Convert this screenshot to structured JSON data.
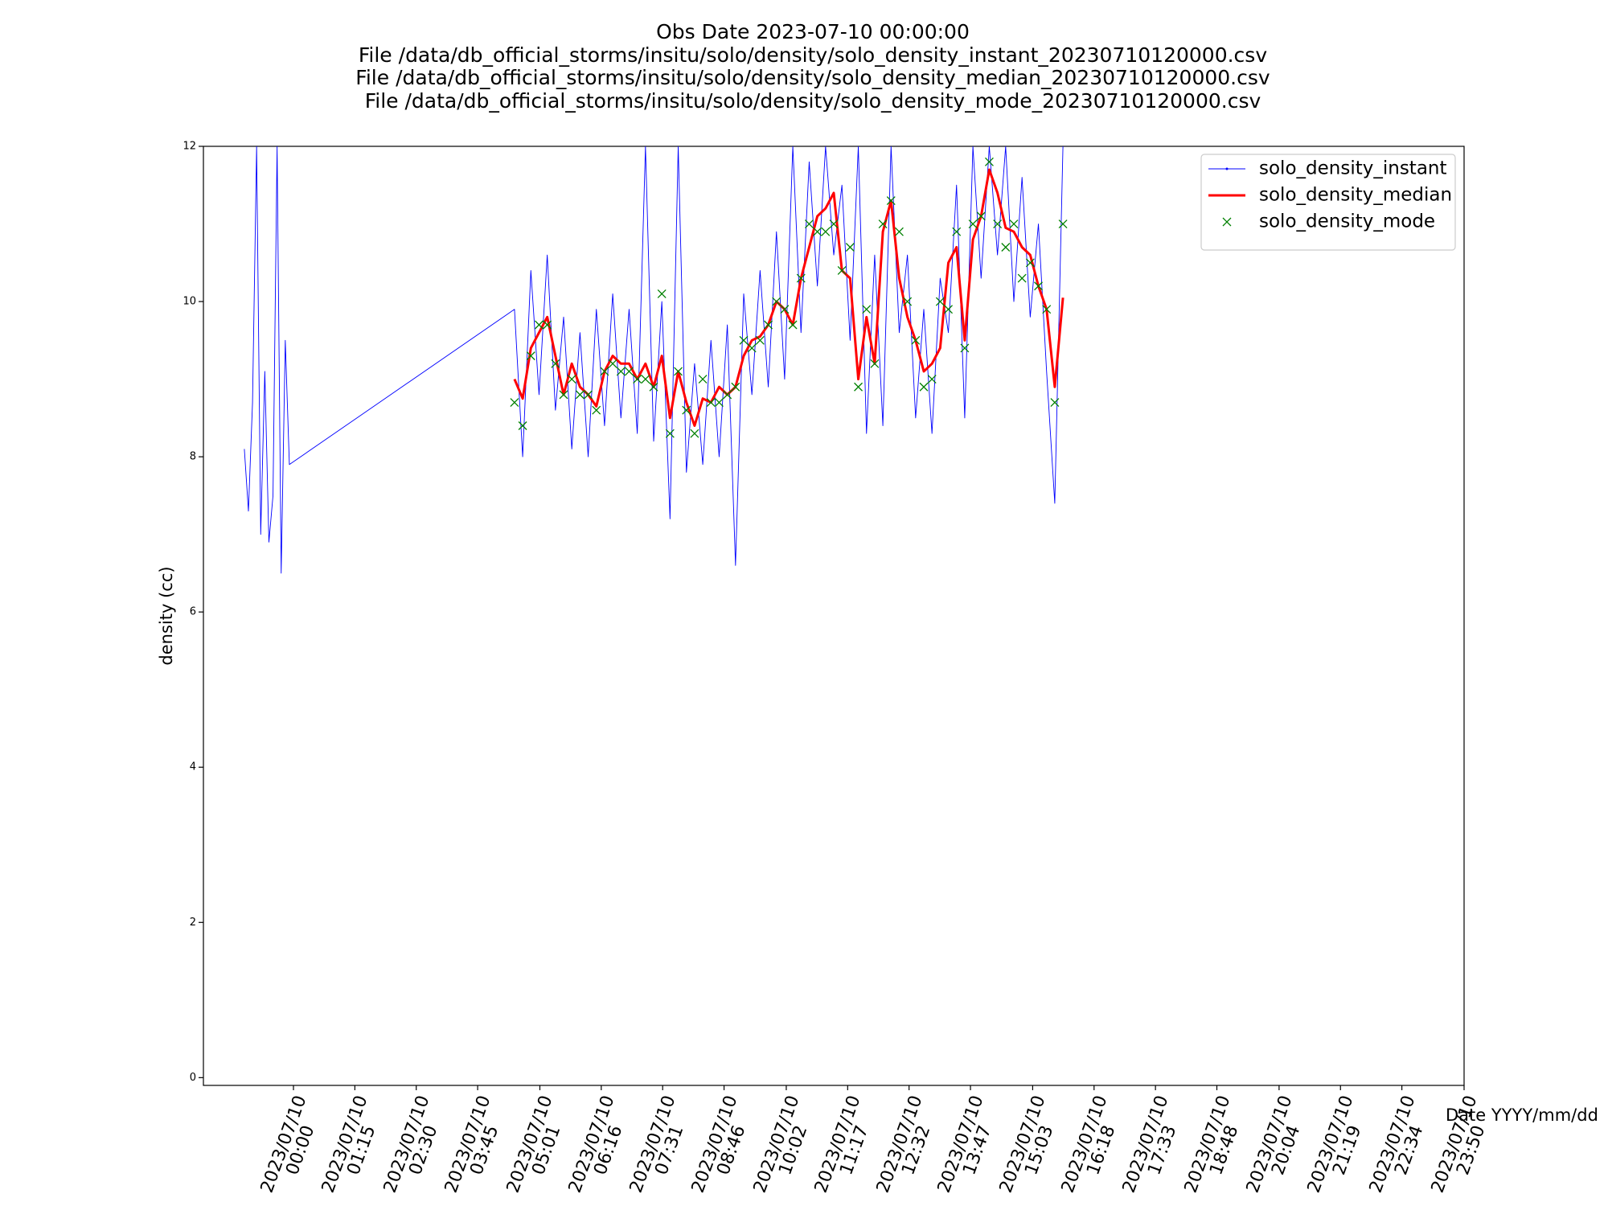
{
  "chart_data": {
    "type": "line",
    "title": [
      "Obs Date 2023-07-10 00:00:00",
      "File /data/db_official_storms/insitu/solo/density/solo_density_instant_20230710120000.csv",
      "File /data/db_official_storms/insitu/solo/density/solo_density_median_20230710120000.csv",
      "File /data/db_official_storms/insitu/solo/density/solo_density_mode_20230710120000.csv"
    ],
    "x_label": "Date YYYY/mm/dd",
    "y_label": "density (cc)",
    "xlim": [
      "2023-07-09T22:10",
      "2023-07-10T23:50"
    ],
    "xticks": [
      {
        "value": "2023-07-10T00:00",
        "label": "2023/07/10\n00:00"
      },
      {
        "value": "2023-07-10T01:15",
        "label": "2023/07/10\n01:15"
      },
      {
        "value": "2023-07-10T02:30",
        "label": "2023/07/10\n02:30"
      },
      {
        "value": "2023-07-10T03:45",
        "label": "2023/07/10\n03:45"
      },
      {
        "value": "2023-07-10T05:01",
        "label": "2023/07/10\n05:01"
      },
      {
        "value": "2023-07-10T06:16",
        "label": "2023/07/10\n06:16"
      },
      {
        "value": "2023-07-10T07:31",
        "label": "2023/07/10\n07:31"
      },
      {
        "value": "2023-07-10T08:46",
        "label": "2023/07/10\n08:46"
      },
      {
        "value": "2023-07-10T10:02",
        "label": "2023/07/10\n10:02"
      },
      {
        "value": "2023-07-10T11:17",
        "label": "2023/07/10\n11:17"
      },
      {
        "value": "2023-07-10T12:32",
        "label": "2023/07/10\n12:32"
      },
      {
        "value": "2023-07-10T13:47",
        "label": "2023/07/10\n13:47"
      },
      {
        "value": "2023-07-10T15:03",
        "label": "2023/07/10\n15:03"
      },
      {
        "value": "2023-07-10T16:18",
        "label": "2023/07/10\n16:18"
      },
      {
        "value": "2023-07-10T17:33",
        "label": "2023/07/10\n17:33"
      },
      {
        "value": "2023-07-10T18:48",
        "label": "2023/07/10\n18:48"
      },
      {
        "value": "2023-07-10T20:04",
        "label": "2023/07/10\n20:04"
      },
      {
        "value": "2023-07-10T21:19",
        "label": "2023/07/10\n21:19"
      },
      {
        "value": "2023-07-10T22:34",
        "label": "2023/07/10\n22:34"
      },
      {
        "value": "2023-07-10T23:50",
        "label": "2023/07/10\n23:50"
      }
    ],
    "ylim": [
      -0.1,
      12
    ],
    "yticks": [
      0,
      2,
      4,
      6,
      8,
      10,
      12
    ],
    "legend": "upper right",
    "series": [
      {
        "name": "solo_density_instant",
        "color": "#0000ff",
        "style": "line",
        "marker": "dot",
        "x": [
          "2023-07-09T23:00",
          "2023-07-09T23:05",
          "2023-07-09T23:10",
          "2023-07-09T23:15",
          "2023-07-09T23:20",
          "2023-07-09T23:25",
          "2023-07-09T23:30",
          "2023-07-09T23:35",
          "2023-07-09T23:40",
          "2023-07-09T23:45",
          "2023-07-09T23:50",
          "2023-07-09T23:55",
          "2023-07-10T04:30",
          "2023-07-10T04:40",
          "2023-07-10T04:50",
          "2023-07-10T05:00",
          "2023-07-10T05:10",
          "2023-07-10T05:20",
          "2023-07-10T05:30",
          "2023-07-10T05:40",
          "2023-07-10T05:50",
          "2023-07-10T06:00",
          "2023-07-10T06:10",
          "2023-07-10T06:20",
          "2023-07-10T06:30",
          "2023-07-10T06:40",
          "2023-07-10T06:50",
          "2023-07-10T07:00",
          "2023-07-10T07:10",
          "2023-07-10T07:20",
          "2023-07-10T07:30",
          "2023-07-10T07:40",
          "2023-07-10T07:50",
          "2023-07-10T08:00",
          "2023-07-10T08:10",
          "2023-07-10T08:20",
          "2023-07-10T08:30",
          "2023-07-10T08:40",
          "2023-07-10T08:50",
          "2023-07-10T09:00",
          "2023-07-10T09:10",
          "2023-07-10T09:20",
          "2023-07-10T09:30",
          "2023-07-10T09:40",
          "2023-07-10T09:50",
          "2023-07-10T10:00",
          "2023-07-10T10:10",
          "2023-07-10T10:20",
          "2023-07-10T10:30",
          "2023-07-10T10:40",
          "2023-07-10T10:50",
          "2023-07-10T11:00",
          "2023-07-10T11:10",
          "2023-07-10T11:20",
          "2023-07-10T11:30",
          "2023-07-10T11:40",
          "2023-07-10T11:50",
          "2023-07-10T12:00",
          "2023-07-10T12:10",
          "2023-07-10T12:20",
          "2023-07-10T12:30",
          "2023-07-10T12:40",
          "2023-07-10T12:50",
          "2023-07-10T13:00",
          "2023-07-10T13:10",
          "2023-07-10T13:20",
          "2023-07-10T13:30",
          "2023-07-10T13:40",
          "2023-07-10T13:50",
          "2023-07-10T14:00",
          "2023-07-10T14:10",
          "2023-07-10T14:20",
          "2023-07-10T14:30",
          "2023-07-10T14:40",
          "2023-07-10T14:50",
          "2023-07-10T15:00",
          "2023-07-10T15:10",
          "2023-07-10T15:20",
          "2023-07-10T15:30",
          "2023-07-10T15:40"
        ],
        "values": [
          8.1,
          7.3,
          8.7,
          12.0,
          7.0,
          9.1,
          6.9,
          7.5,
          12.0,
          6.5,
          9.5,
          7.9,
          9.9,
          8.0,
          10.4,
          8.8,
          10.6,
          8.6,
          9.8,
          8.1,
          9.6,
          8.0,
          9.9,
          8.4,
          10.1,
          8.5,
          9.9,
          8.3,
          12.0,
          8.2,
          10.0,
          7.2,
          12.0,
          7.8,
          9.2,
          7.9,
          9.5,
          8.0,
          9.7,
          6.6,
          10.1,
          8.8,
          10.4,
          8.9,
          10.9,
          9.0,
          12.0,
          9.6,
          11.8,
          10.2,
          12.0,
          10.6,
          11.5,
          9.5,
          12.0,
          8.3,
          10.6,
          8.4,
          12.0,
          9.6,
          10.6,
          8.5,
          9.9,
          8.3,
          10.3,
          9.6,
          11.5,
          8.5,
          12.0,
          10.3,
          12.0,
          10.6,
          12.0,
          10.0,
          11.6,
          9.8,
          11.0,
          9.1,
          7.4,
          12.0
        ]
      },
      {
        "name": "solo_density_median",
        "color": "#ff0000",
        "style": "line",
        "x": [
          "2023-07-10T04:30",
          "2023-07-10T04:40",
          "2023-07-10T04:50",
          "2023-07-10T05:00",
          "2023-07-10T05:10",
          "2023-07-10T05:20",
          "2023-07-10T05:30",
          "2023-07-10T05:40",
          "2023-07-10T05:50",
          "2023-07-10T06:00",
          "2023-07-10T06:10",
          "2023-07-10T06:20",
          "2023-07-10T06:30",
          "2023-07-10T06:40",
          "2023-07-10T06:50",
          "2023-07-10T07:00",
          "2023-07-10T07:10",
          "2023-07-10T07:20",
          "2023-07-10T07:30",
          "2023-07-10T07:40",
          "2023-07-10T07:50",
          "2023-07-10T08:00",
          "2023-07-10T08:10",
          "2023-07-10T08:20",
          "2023-07-10T08:30",
          "2023-07-10T08:40",
          "2023-07-10T08:50",
          "2023-07-10T09:00",
          "2023-07-10T09:10",
          "2023-07-10T09:20",
          "2023-07-10T09:30",
          "2023-07-10T09:40",
          "2023-07-10T09:50",
          "2023-07-10T10:00",
          "2023-07-10T10:10",
          "2023-07-10T10:20",
          "2023-07-10T10:30",
          "2023-07-10T10:40",
          "2023-07-10T10:50",
          "2023-07-10T11:00",
          "2023-07-10T11:10",
          "2023-07-10T11:20",
          "2023-07-10T11:30",
          "2023-07-10T11:40",
          "2023-07-10T11:50",
          "2023-07-10T12:00",
          "2023-07-10T12:10",
          "2023-07-10T12:20",
          "2023-07-10T12:30",
          "2023-07-10T12:40",
          "2023-07-10T12:50",
          "2023-07-10T13:00",
          "2023-07-10T13:10",
          "2023-07-10T13:20",
          "2023-07-10T13:30",
          "2023-07-10T13:40",
          "2023-07-10T13:50",
          "2023-07-10T14:00",
          "2023-07-10T14:10",
          "2023-07-10T14:20",
          "2023-07-10T14:30",
          "2023-07-10T14:40",
          "2023-07-10T14:50",
          "2023-07-10T15:00",
          "2023-07-10T15:10",
          "2023-07-10T15:20",
          "2023-07-10T15:30",
          "2023-07-10T15:40"
        ],
        "values": [
          9.0,
          8.75,
          9.4,
          9.6,
          9.8,
          9.3,
          8.8,
          9.2,
          8.9,
          8.8,
          8.65,
          9.1,
          9.3,
          9.2,
          9.2,
          9.0,
          9.2,
          8.9,
          9.3,
          8.5,
          9.1,
          8.7,
          8.4,
          8.75,
          8.7,
          8.9,
          8.8,
          8.9,
          9.3,
          9.5,
          9.55,
          9.7,
          10.0,
          9.9,
          9.7,
          10.3,
          10.7,
          11.1,
          11.2,
          11.4,
          10.4,
          10.3,
          9.0,
          9.8,
          9.2,
          10.9,
          11.3,
          10.3,
          9.8,
          9.5,
          9.1,
          9.2,
          9.4,
          10.5,
          10.7,
          9.5,
          10.8,
          11.1,
          11.7,
          11.4,
          10.95,
          10.9,
          10.7,
          10.6,
          10.2,
          9.9,
          8.9,
          10.05
        ]
      },
      {
        "name": "solo_density_mode",
        "color": "#008000",
        "style": "markers",
        "marker": "x",
        "x": [
          "2023-07-10T04:30",
          "2023-07-10T04:40",
          "2023-07-10T04:50",
          "2023-07-10T05:00",
          "2023-07-10T05:10",
          "2023-07-10T05:20",
          "2023-07-10T05:30",
          "2023-07-10T05:40",
          "2023-07-10T05:50",
          "2023-07-10T06:00",
          "2023-07-10T06:10",
          "2023-07-10T06:20",
          "2023-07-10T06:30",
          "2023-07-10T06:40",
          "2023-07-10T06:50",
          "2023-07-10T07:00",
          "2023-07-10T07:10",
          "2023-07-10T07:20",
          "2023-07-10T07:30",
          "2023-07-10T07:40",
          "2023-07-10T07:50",
          "2023-07-10T08:00",
          "2023-07-10T08:10",
          "2023-07-10T08:20",
          "2023-07-10T08:30",
          "2023-07-10T08:40",
          "2023-07-10T08:50",
          "2023-07-10T09:00",
          "2023-07-10T09:10",
          "2023-07-10T09:20",
          "2023-07-10T09:30",
          "2023-07-10T09:40",
          "2023-07-10T09:50",
          "2023-07-10T10:00",
          "2023-07-10T10:10",
          "2023-07-10T10:20",
          "2023-07-10T10:30",
          "2023-07-10T10:40",
          "2023-07-10T10:50",
          "2023-07-10T11:00",
          "2023-07-10T11:10",
          "2023-07-10T11:20",
          "2023-07-10T11:30",
          "2023-07-10T11:40",
          "2023-07-10T11:50",
          "2023-07-10T12:00",
          "2023-07-10T12:10",
          "2023-07-10T12:20",
          "2023-07-10T12:30",
          "2023-07-10T12:40",
          "2023-07-10T12:50",
          "2023-07-10T13:00",
          "2023-07-10T13:10",
          "2023-07-10T13:20",
          "2023-07-10T13:30",
          "2023-07-10T13:40",
          "2023-07-10T13:50",
          "2023-07-10T14:00",
          "2023-07-10T14:10",
          "2023-07-10T14:20",
          "2023-07-10T14:30",
          "2023-07-10T14:40",
          "2023-07-10T14:50",
          "2023-07-10T15:00",
          "2023-07-10T15:10",
          "2023-07-10T15:20",
          "2023-07-10T15:30",
          "2023-07-10T15:40"
        ],
        "values": [
          8.7,
          8.4,
          9.3,
          9.7,
          9.7,
          9.2,
          8.8,
          9.0,
          8.8,
          8.8,
          8.6,
          9.1,
          9.2,
          9.1,
          9.1,
          9.0,
          9.0,
          8.9,
          10.1,
          8.3,
          9.1,
          8.6,
          8.3,
          9.0,
          8.7,
          8.7,
          8.8,
          8.9,
          9.5,
          9.4,
          9.5,
          9.7,
          10.0,
          9.9,
          9.7,
          10.3,
          11.0,
          10.9,
          10.9,
          11.0,
          10.4,
          10.7,
          8.9,
          9.9,
          9.2,
          11.0,
          11.3,
          10.9,
          10.0,
          9.5,
          8.9,
          9.0,
          10.0,
          9.9,
          10.9,
          9.4,
          11.0,
          11.1,
          11.8,
          11.0,
          10.7,
          11.0,
          10.3,
          10.5,
          10.2,
          9.9,
          8.7,
          11.0
        ]
      }
    ]
  }
}
